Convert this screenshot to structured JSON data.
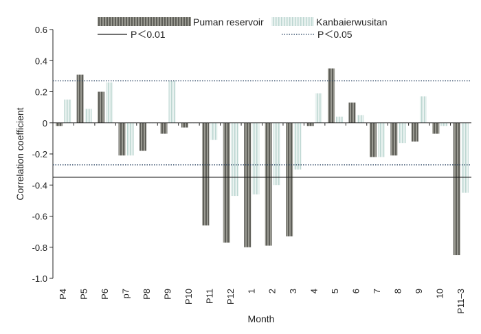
{
  "chart_data": {
    "type": "bar",
    "xlabel": "Month",
    "ylabel": "Correlation coefficient",
    "ylim": [
      -1.0,
      0.6
    ],
    "yticks": [
      "0.6",
      "0.4",
      "0.2",
      "0",
      "-0.2",
      "-0.4",
      "-0.6",
      "-0.8",
      "-1.0"
    ],
    "ytick_values": [
      0.6,
      0.4,
      0.2,
      0,
      -0.2,
      -0.4,
      -0.6,
      -0.8,
      -1.0
    ],
    "categories": [
      "P4",
      "P5",
      "P6",
      "P7",
      "P8",
      "P9",
      "P10",
      "P11",
      "P12",
      "1",
      "2",
      "3",
      "4",
      "5",
      "6",
      "7",
      "8",
      "9",
      "10",
      "P11–3"
    ],
    "category_labels": [
      "P4",
      "P5",
      "P6",
      "p7",
      "P8",
      "P9",
      "P10",
      "P11",
      "P12",
      "1",
      "2",
      "3",
      "4",
      "5",
      "6",
      "7",
      "8",
      "9",
      "10",
      "P11–3"
    ],
    "series": [
      {
        "name": "Puman reservoir",
        "color": "#7a7a72",
        "values": [
          -0.02,
          0.31,
          0.2,
          -0.21,
          -0.18,
          -0.07,
          -0.03,
          -0.66,
          -0.77,
          -0.8,
          -0.79,
          -0.73,
          -0.02,
          0.35,
          0.13,
          -0.22,
          -0.21,
          -0.12,
          -0.07,
          -0.85
        ]
      },
      {
        "name": "Kanbaierwusitan",
        "color": "#cfe3df",
        "values": [
          0.15,
          0.09,
          0.26,
          -0.21,
          0.0,
          0.27,
          0.0,
          -0.11,
          -0.47,
          -0.46,
          -0.4,
          -0.3,
          0.19,
          0.04,
          0.05,
          -0.22,
          -0.13,
          0.17,
          -0.02,
          -0.45
        ]
      }
    ],
    "reference_lines": [
      {
        "name": "P＜0.01",
        "values": [
          -0.35
        ],
        "style": "solid",
        "color": "#1a1a1a"
      },
      {
        "name": "P＜0.05",
        "values": [
          0.27,
          -0.27
        ],
        "style": "dotted",
        "color": "#1f3a5a"
      }
    ],
    "legend_position": "top",
    "grid": false
  }
}
